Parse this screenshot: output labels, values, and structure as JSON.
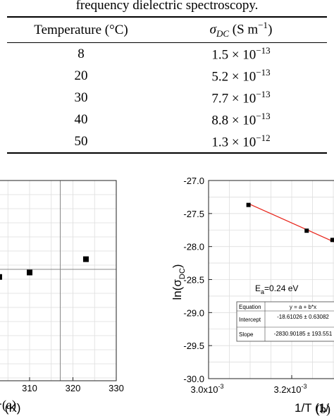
{
  "caption": "frequency dielectric spectroscopy.",
  "table": {
    "header_temperature": "Temperature (°C)",
    "header_sigma_symbol": "σ",
    "header_sigma_sub": "DC",
    "header_sigma_unit": " (S m",
    "header_sigma_unit_exp": "−1",
    "header_sigma_close": ")",
    "rows": [
      {
        "temperature": "8",
        "mantissa": "1.5 × 10",
        "exponent": "−13"
      },
      {
        "temperature": "20",
        "mantissa": "5.2 × 10",
        "exponent": "−13"
      },
      {
        "temperature": "30",
        "mantissa": "7.7 × 10",
        "exponent": "−13"
      },
      {
        "temperature": "40",
        "mantissa": "8.8 × 10",
        "exponent": "−13"
      },
      {
        "temperature": "50",
        "mantissa": "1.3 × 10",
        "exponent": "−12"
      }
    ]
  },
  "chart_data": [
    {
      "type": "scatter",
      "panel_label": "(a)",
      "xlabel": "T (K)",
      "xlim": [
        300,
        330
      ],
      "x_ticks": [
        "310",
        "320",
        "330"
      ],
      "grid": true,
      "points": [
        {
          "x": 303,
          "y": -0.6
        },
        {
          "x": 310,
          "y": -0.25
        },
        {
          "x": 323,
          "y": 0.8
        }
      ]
    },
    {
      "type": "scatter",
      "panel_label": "(b)",
      "xlabel": "1/T (1/",
      "ylabel": "ln(σ",
      "ylabel_sub": "DC",
      "ylabel_close": ")",
      "ylim": [
        -30.0,
        -27.0
      ],
      "xlim": [
        0.003,
        0.00338
      ],
      "y_ticks": [
        "-27.0",
        "-27.5",
        "-28.0",
        "-28.5",
        "-29.0",
        "-29.5",
        "-30.0"
      ],
      "x_ticks": [
        {
          "mantissa": "3.0x10",
          "exp": "-3"
        },
        {
          "mantissa": "3.2x10",
          "exp": "-3"
        }
      ],
      "grid": true,
      "fit_color": "#e8261c",
      "points": [
        {
          "x": 0.003096,
          "y": -27.37
        },
        {
          "x": 0.003236,
          "y": -27.76
        },
        {
          "x": 0.003298,
          "y": -27.9
        }
      ],
      "fit_line": {
        "x0": 0.003096,
        "y0": -27.35,
        "x1": 0.00338,
        "y1": -28.15
      },
      "annotation_prefix": "E",
      "annotation_sub": "a",
      "annotation_value": "=0.24 eV",
      "fit_table": {
        "equation_label": "Equation",
        "equation_value": "y = a + b*x",
        "intercept_label": "Intercept",
        "intercept_value": "-18.61026 ± 0.63082",
        "slope_label": "Slope",
        "slope_value": "-2830.90185 ± 193.551"
      }
    }
  ]
}
